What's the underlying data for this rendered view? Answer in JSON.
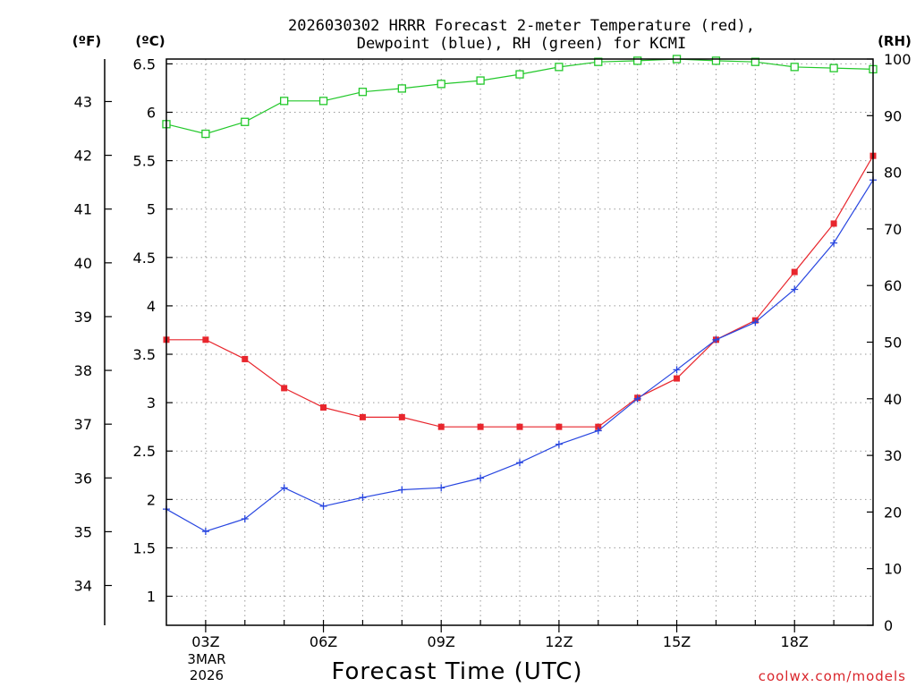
{
  "chart_data": {
    "type": "line",
    "title_line1": "2026030302 HRRR Forecast 2-meter Temperature (red),",
    "title_line2": "Dewpoint (blue), RH (green) for KCMI",
    "xlabel": "Forecast Time (UTC)",
    "credit": "coolwx.com/models",
    "left_outer_axis": {
      "label": "(ºF)",
      "ticks": [
        "34",
        "35",
        "36",
        "37",
        "38",
        "39",
        "40",
        "41",
        "42",
        "43"
      ]
    },
    "left_axis": {
      "label": "(ºC)",
      "ylim": [
        0.7,
        6.55
      ],
      "ticks": [
        "1",
        "1.5",
        "2",
        "2.5",
        "3",
        "3.5",
        "4",
        "4.5",
        "5",
        "5.5",
        "6",
        "6.5"
      ]
    },
    "right_axis": {
      "label": "(RH)",
      "ylim": [
        0,
        100
      ],
      "ticks": [
        "0",
        "10",
        "20",
        "30",
        "40",
        "50",
        "60",
        "70",
        "80",
        "90",
        "100"
      ]
    },
    "x_ticks": [
      "03Z",
      "06Z",
      "09Z",
      "12Z",
      "15Z",
      "18Z"
    ],
    "x_date_line1": "3MAR",
    "x_date_line2": "2026",
    "x_hours": [
      2,
      3,
      4,
      5,
      6,
      7,
      8,
      9,
      10,
      11,
      12,
      13,
      14,
      15,
      16,
      17,
      18,
      19,
      20
    ],
    "series": [
      {
        "name": "Temperature",
        "axis": "C",
        "color": "#e8262d",
        "marker": "filled-square",
        "values": [
          3.65,
          3.65,
          3.45,
          3.15,
          2.95,
          2.85,
          2.85,
          2.75,
          2.75,
          2.75,
          2.75,
          2.75,
          3.05,
          3.25,
          3.65,
          3.85,
          4.35,
          4.85,
          5.55
        ]
      },
      {
        "name": "Dewpoint",
        "axis": "C",
        "color": "#2846e0",
        "marker": "plus",
        "values": [
          1.9,
          1.67,
          1.8,
          2.12,
          1.93,
          2.02,
          2.1,
          2.12,
          2.22,
          2.38,
          2.57,
          2.71,
          3.04,
          3.34,
          3.65,
          3.83,
          4.17,
          4.65,
          5.3
        ]
      },
      {
        "name": "RH",
        "axis": "RH",
        "color": "#22c82a",
        "marker": "open-square",
        "values": [
          88.5,
          86.8,
          88.9,
          92.6,
          92.6,
          94.2,
          94.8,
          95.6,
          96.2,
          97.3,
          98.6,
          99.5,
          99.7,
          100,
          99.7,
          99.5,
          98.6,
          98.4,
          98.2
        ]
      }
    ]
  }
}
